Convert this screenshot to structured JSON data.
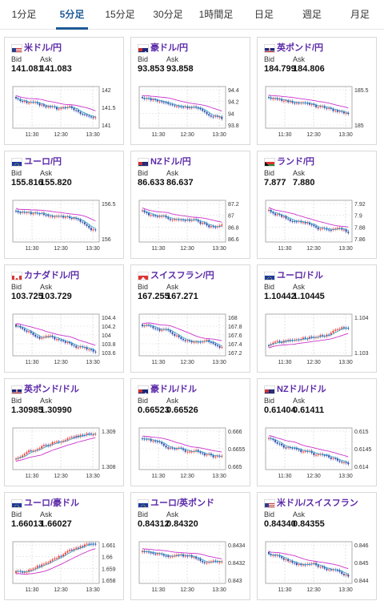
{
  "tabs": [
    "1分足",
    "5分足",
    "15分足",
    "30分足",
    "1時間足",
    "日足",
    "週足",
    "月足"
  ],
  "active_tab": "5分足",
  "bid_label": "Bid",
  "ask_label": "Ask",
  "time_labels": [
    "11:30",
    "12:30",
    "13:30"
  ],
  "cards": [
    {
      "title": "米ドル/円",
      "bid": "141.081",
      "ask": "141.083",
      "flag": "US",
      "y_labels": [
        "142",
        "141.5",
        "141"
      ]
    },
    {
      "title": "豪ドル/円",
      "bid": "93.853",
      "ask": "93.858",
      "flag": "AU",
      "y_labels": [
        "94.4",
        "94.2",
        "94",
        "93.8"
      ]
    },
    {
      "title": "英ポンド/円",
      "bid": "184.799",
      "ask": "184.806",
      "flag": "GB",
      "y_labels": [
        "185.5",
        "185"
      ]
    },
    {
      "title": "ユーロ/円",
      "bid": "155.816",
      "ask": "155.820",
      "flag": "EU",
      "y_labels": [
        "156.5",
        "156"
      ]
    },
    {
      "title": "NZドル/円",
      "bid": "86.633",
      "ask": "86.637",
      "flag": "NZ",
      "y_labels": [
        "87.2",
        "87",
        "86.8",
        "86.6"
      ]
    },
    {
      "title": "ランド/円",
      "bid": "7.877",
      "ask": "7.880",
      "flag": "ZA",
      "y_labels": [
        "7.92",
        "7.9",
        "7.88",
        "7.86"
      ]
    },
    {
      "title": "カナダドル/円",
      "bid": "103.725",
      "ask": "103.729",
      "flag": "CA",
      "y_labels": [
        "104.4",
        "104.2",
        "104",
        "103.8",
        "103.6"
      ]
    },
    {
      "title": "スイスフラン/円",
      "bid": "167.255",
      "ask": "167.271",
      "flag": "CH",
      "y_labels": [
        "168",
        "167.8",
        "167.6",
        "167.4",
        "167.2"
      ]
    },
    {
      "title": "ユーロ/ドル",
      "bid": "1.10442",
      "ask": "1.10445",
      "flag": "EU",
      "y_labels": [
        "1.104",
        "1.103"
      ]
    },
    {
      "title": "英ポンド/ドル",
      "bid": "1.30985",
      "ask": "1.30990",
      "flag": "GB",
      "y_labels": [
        "1.309",
        "1.308"
      ]
    },
    {
      "title": "豪ドル/ドル",
      "bid": "0.66523",
      "ask": "0.66526",
      "flag": "AU",
      "y_labels": [
        "0.666",
        "0.6655",
        "0.665"
      ]
    },
    {
      "title": "NZドル/ドル",
      "bid": "0.61404",
      "ask": "0.61411",
      "flag": "NZ",
      "y_labels": [
        "0.615",
        "0.6145",
        "0.614"
      ]
    },
    {
      "title": "ユーロ/豪ドル",
      "bid": "1.66013",
      "ask": "1.66027",
      "flag": "EU",
      "y_labels": [
        "1.661",
        "1.66",
        "1.659",
        "1.658"
      ]
    },
    {
      "title": "ユーロ/英ポンド",
      "bid": "0.84312",
      "ask": "0.84320",
      "flag": "EU",
      "y_labels": [
        "0.8434",
        "0.8432",
        "0.843"
      ]
    },
    {
      "title": "米ドル/スイスフラン",
      "bid": "0.84340",
      "ask": "0.84355",
      "flag": "US",
      "y_labels": [
        "0.846",
        "0.845",
        "0.844"
      ]
    }
  ],
  "colors": {
    "accent": "#1e5a96",
    "title": "#5b2aa8",
    "up": "#e8413b",
    "down": "#2f4ba8",
    "ma": "#cc33cc",
    "ma2": "#33a0c8"
  }
}
